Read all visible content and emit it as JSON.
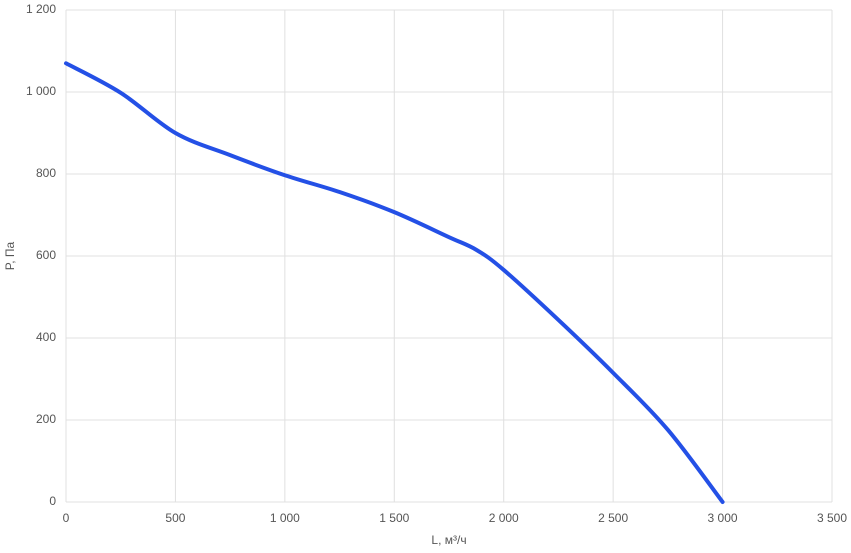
{
  "chart_data": {
    "type": "line",
    "x_label": "L, м³/ч",
    "y_label": "P, Па",
    "x": [
      0,
      250,
      500,
      750,
      1000,
      1250,
      1500,
      1750,
      1875,
      2000,
      2250,
      2500,
      2750,
      3000
    ],
    "series": [
      {
        "color": "#2450e6",
        "values": [
          1070,
          998,
          900,
          846,
          797,
          756,
          707,
          646,
          615,
          566,
          444,
          315,
          176,
          0
        ]
      }
    ],
    "xlim": [
      0,
      3500
    ],
    "xticks": [
      0,
      500,
      {
        "value": 1000,
        "label": "1 000"
      },
      {
        "value": 1500,
        "label": "1 500"
      },
      {
        "value": 2000,
        "label": "2 000"
      },
      {
        "value": 2500,
        "label": "2 500"
      },
      {
        "value": 3000,
        "label": "3 000"
      },
      {
        "value": 3500,
        "label": "3 500"
      }
    ],
    "ylim": [
      0,
      1200
    ],
    "yticks": [
      0,
      200,
      400,
      600,
      800,
      {
        "value": 1000,
        "label": "1 000"
      },
      {
        "value": 1200,
        "label": "1 200"
      }
    ],
    "grid": true
  }
}
